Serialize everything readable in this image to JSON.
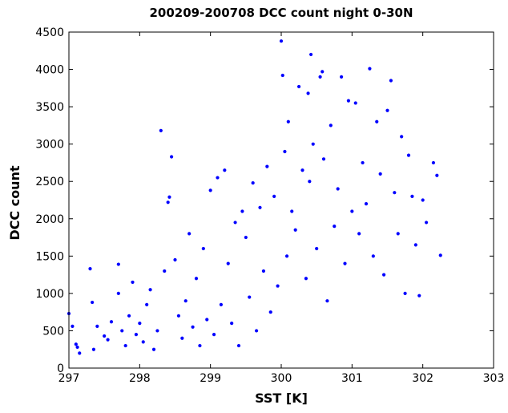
{
  "chart_data": {
    "type": "scatter",
    "title": "200209-200708 DCC count night 0-30N",
    "xlabel": "SST [K]",
    "ylabel": "DCC count",
    "xlim": [
      297,
      303
    ],
    "ylim": [
      0,
      4500
    ],
    "x_ticks": [
      297,
      298,
      299,
      300,
      301,
      302,
      303
    ],
    "y_ticks": [
      0,
      500,
      1000,
      1500,
      2000,
      2500,
      3000,
      3500,
      4000,
      4500
    ],
    "grid": false,
    "legend": "none",
    "marker_color": "#0000ff",
    "series": [
      {
        "name": "",
        "points": [
          [
            297.0,
            730
          ],
          [
            297.05,
            560
          ],
          [
            297.1,
            320
          ],
          [
            297.12,
            280
          ],
          [
            297.15,
            200
          ],
          [
            297.3,
            1330
          ],
          [
            297.33,
            880
          ],
          [
            297.35,
            250
          ],
          [
            297.4,
            560
          ],
          [
            297.5,
            430
          ],
          [
            297.55,
            380
          ],
          [
            297.6,
            620
          ],
          [
            297.7,
            1390
          ],
          [
            297.7,
            1000
          ],
          [
            297.75,
            500
          ],
          [
            297.8,
            300
          ],
          [
            297.85,
            700
          ],
          [
            297.9,
            1150
          ],
          [
            297.95,
            450
          ],
          [
            298.0,
            600
          ],
          [
            298.05,
            350
          ],
          [
            298.1,
            850
          ],
          [
            298.15,
            1050
          ],
          [
            298.2,
            250
          ],
          [
            298.25,
            500
          ],
          [
            298.3,
            3180
          ],
          [
            298.35,
            1300
          ],
          [
            298.4,
            2220
          ],
          [
            298.42,
            2290
          ],
          [
            298.45,
            2830
          ],
          [
            298.5,
            1450
          ],
          [
            298.55,
            700
          ],
          [
            298.6,
            400
          ],
          [
            298.65,
            900
          ],
          [
            298.7,
            1800
          ],
          [
            298.75,
            550
          ],
          [
            298.8,
            1200
          ],
          [
            298.85,
            300
          ],
          [
            298.9,
            1600
          ],
          [
            298.95,
            650
          ],
          [
            299.0,
            2380
          ],
          [
            299.05,
            450
          ],
          [
            299.1,
            2550
          ],
          [
            299.15,
            850
          ],
          [
            299.2,
            2650
          ],
          [
            299.25,
            1400
          ],
          [
            299.3,
            600
          ],
          [
            299.35,
            1950
          ],
          [
            299.4,
            300
          ],
          [
            299.45,
            2100
          ],
          [
            299.5,
            1750
          ],
          [
            299.55,
            950
          ],
          [
            299.6,
            2480
          ],
          [
            299.65,
            500
          ],
          [
            299.7,
            2150
          ],
          [
            299.75,
            1300
          ],
          [
            299.8,
            2700
          ],
          [
            299.85,
            750
          ],
          [
            299.9,
            2300
          ],
          [
            299.95,
            1100
          ],
          [
            300.0,
            4380
          ],
          [
            300.02,
            3920
          ],
          [
            300.05,
            2900
          ],
          [
            300.08,
            1500
          ],
          [
            300.1,
            3300
          ],
          [
            300.15,
            2100
          ],
          [
            300.2,
            1850
          ],
          [
            300.25,
            3770
          ],
          [
            300.3,
            2650
          ],
          [
            300.35,
            1200
          ],
          [
            300.38,
            3680
          ],
          [
            300.4,
            2500
          ],
          [
            300.42,
            4200
          ],
          [
            300.45,
            3000
          ],
          [
            300.5,
            1600
          ],
          [
            300.55,
            3900
          ],
          [
            300.58,
            3970
          ],
          [
            300.6,
            2800
          ],
          [
            300.65,
            900
          ],
          [
            300.7,
            3250
          ],
          [
            300.75,
            1900
          ],
          [
            300.8,
            2400
          ],
          [
            300.85,
            3900
          ],
          [
            300.9,
            1400
          ],
          [
            300.95,
            3580
          ],
          [
            301.0,
            2100
          ],
          [
            301.05,
            3550
          ],
          [
            301.1,
            1800
          ],
          [
            301.15,
            2750
          ],
          [
            301.2,
            2200
          ],
          [
            301.25,
            4010
          ],
          [
            301.3,
            1500
          ],
          [
            301.35,
            3300
          ],
          [
            301.4,
            2600
          ],
          [
            301.45,
            1250
          ],
          [
            301.5,
            3450
          ],
          [
            301.55,
            3850
          ],
          [
            301.6,
            2350
          ],
          [
            301.65,
            1800
          ],
          [
            301.7,
            3100
          ],
          [
            301.75,
            1000
          ],
          [
            301.8,
            2850
          ],
          [
            301.85,
            2300
          ],
          [
            301.9,
            1650
          ],
          [
            301.95,
            970
          ],
          [
            302.0,
            2250
          ],
          [
            302.05,
            1950
          ],
          [
            302.15,
            2750
          ],
          [
            302.2,
            2580
          ],
          [
            302.25,
            1510
          ]
        ]
      }
    ]
  }
}
